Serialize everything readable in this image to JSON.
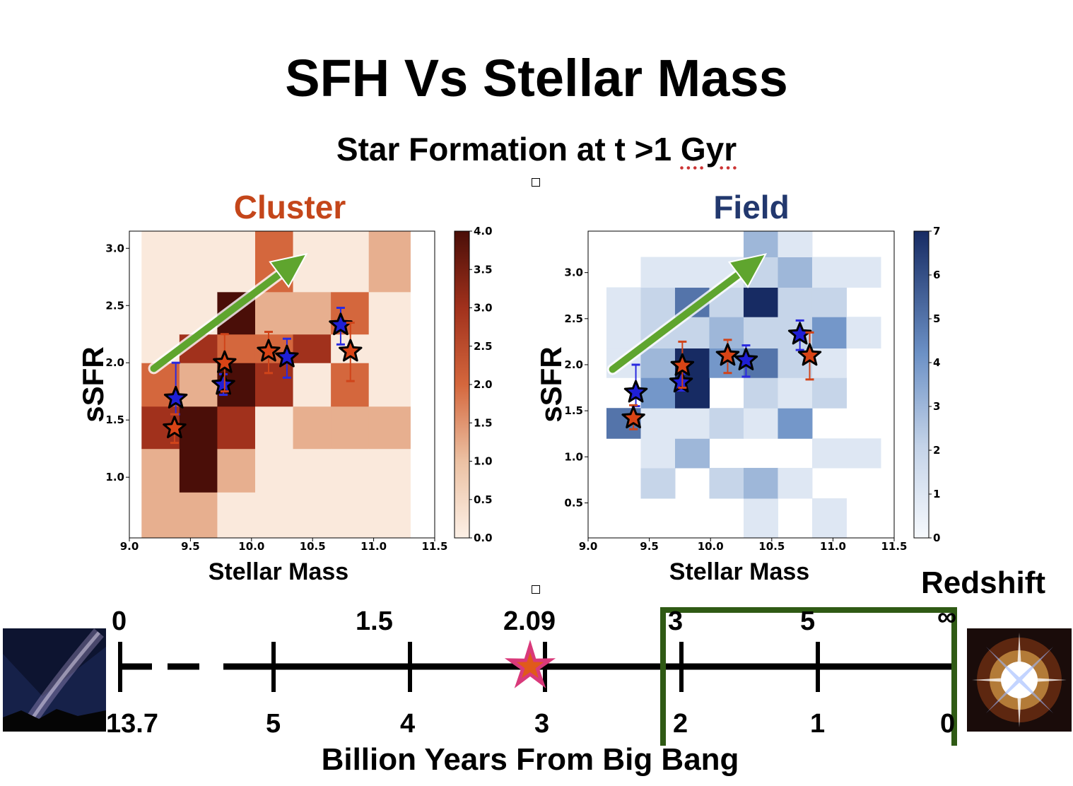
{
  "slide": {
    "title": "SFH Vs Stellar Mass",
    "subtitle_prefix": "Star Formation at t >1 ",
    "subtitle_unit": "Gyr"
  },
  "chart_data": [
    {
      "type": "heatmap",
      "title": "Cluster",
      "xlabel": "Stellar Mass",
      "ylabel": "sSFR",
      "xlim": [
        9.0,
        11.5
      ],
      "ylim": [
        0.47,
        3.15
      ],
      "xticks": [
        "9.0",
        "9.5",
        "10.0",
        "10.5",
        "11.0",
        "11.5"
      ],
      "yticks": [
        "1.0",
        "1.5",
        "2.0",
        "2.5",
        "3.0"
      ],
      "colormap": "Oranges-Reds",
      "colorbar": {
        "min": 0,
        "max": 4,
        "ticks": [
          "0.0",
          "0.5",
          "1.0",
          "1.5",
          "2.0",
          "2.5",
          "3.0",
          "3.5",
          "4.0"
        ]
      },
      "cells": [
        {
          "x0": 9.1,
          "x1": 9.41,
          "y0": 0.47,
          "y1": 0.87,
          "v": 1.2
        },
        {
          "x0": 9.1,
          "x1": 9.41,
          "y0": 0.87,
          "y1": 1.25,
          "v": 1.2
        },
        {
          "x0": 9.1,
          "x1": 9.41,
          "y0": 1.25,
          "y1": 1.62,
          "v": 3.0
        },
        {
          "x0": 9.1,
          "x1": 9.41,
          "y0": 1.62,
          "y1": 2.0,
          "v": 2.0
        },
        {
          "x0": 9.1,
          "x1": 9.41,
          "y0": 2.0,
          "y1": 3.15,
          "v": 0.15
        },
        {
          "x0": 9.41,
          "x1": 9.72,
          "y0": 0.47,
          "y1": 0.87,
          "v": 1.2
        },
        {
          "x0": 9.41,
          "x1": 9.72,
          "y0": 0.87,
          "y1": 1.25,
          "v": 4.0
        },
        {
          "x0": 9.41,
          "x1": 9.72,
          "y0": 1.25,
          "y1": 1.62,
          "v": 4.0
        },
        {
          "x0": 9.41,
          "x1": 9.72,
          "y0": 1.62,
          "y1": 2.0,
          "v": 1.2
        },
        {
          "x0": 9.41,
          "x1": 9.72,
          "y0": 2.0,
          "y1": 2.25,
          "v": 3.0
        },
        {
          "x0": 9.41,
          "x1": 9.72,
          "y0": 2.25,
          "y1": 3.15,
          "v": 0.15
        },
        {
          "x0": 9.72,
          "x1": 10.03,
          "y0": 0.47,
          "y1": 0.87,
          "v": 0.15
        },
        {
          "x0": 9.72,
          "x1": 10.03,
          "y0": 0.87,
          "y1": 1.25,
          "v": 1.2
        },
        {
          "x0": 9.72,
          "x1": 10.03,
          "y0": 1.25,
          "y1": 1.62,
          "v": 3.0
        },
        {
          "x0": 9.72,
          "x1": 10.03,
          "y0": 1.62,
          "y1": 2.0,
          "v": 4.0
        },
        {
          "x0": 9.72,
          "x1": 10.03,
          "y0": 2.0,
          "y1": 2.25,
          "v": 2.0
        },
        {
          "x0": 9.72,
          "x1": 10.03,
          "y0": 2.25,
          "y1": 2.62,
          "v": 4.0
        },
        {
          "x0": 9.72,
          "x1": 10.03,
          "y0": 2.62,
          "y1": 3.15,
          "v": 0.15
        },
        {
          "x0": 10.03,
          "x1": 10.34,
          "y0": 0.47,
          "y1": 1.62,
          "v": 0.15
        },
        {
          "x0": 10.03,
          "x1": 10.34,
          "y0": 1.62,
          "y1": 2.0,
          "v": 3.0
        },
        {
          "x0": 10.03,
          "x1": 10.34,
          "y0": 2.0,
          "y1": 2.25,
          "v": 2.0
        },
        {
          "x0": 10.03,
          "x1": 10.34,
          "y0": 2.25,
          "y1": 2.62,
          "v": 1.2
        },
        {
          "x0": 10.03,
          "x1": 10.34,
          "y0": 2.62,
          "y1": 3.15,
          "v": 2.0
        },
        {
          "x0": 10.34,
          "x1": 10.65,
          "y0": 0.47,
          "y1": 1.25,
          "v": 0.15
        },
        {
          "x0": 10.34,
          "x1": 10.65,
          "y0": 1.25,
          "y1": 1.62,
          "v": 1.2
        },
        {
          "x0": 10.34,
          "x1": 10.65,
          "y0": 1.62,
          "y1": 2.0,
          "v": 0.15
        },
        {
          "x0": 10.34,
          "x1": 10.65,
          "y0": 2.0,
          "y1": 2.25,
          "v": 3.0
        },
        {
          "x0": 10.34,
          "x1": 10.65,
          "y0": 2.25,
          "y1": 2.62,
          "v": 1.2
        },
        {
          "x0": 10.34,
          "x1": 10.65,
          "y0": 2.62,
          "y1": 3.15,
          "v": 0.15
        },
        {
          "x0": 10.65,
          "x1": 10.96,
          "y0": 0.47,
          "y1": 1.25,
          "v": 0.15
        },
        {
          "x0": 10.65,
          "x1": 10.96,
          "y0": 1.25,
          "y1": 1.62,
          "v": 1.2
        },
        {
          "x0": 10.65,
          "x1": 10.96,
          "y0": 1.62,
          "y1": 2.0,
          "v": 2.0
        },
        {
          "x0": 10.65,
          "x1": 10.96,
          "y0": 2.0,
          "y1": 2.25,
          "v": 0.15
        },
        {
          "x0": 10.65,
          "x1": 10.96,
          "y0": 2.25,
          "y1": 2.62,
          "v": 2.0
        },
        {
          "x0": 10.65,
          "x1": 10.96,
          "y0": 2.62,
          "y1": 3.15,
          "v": 0.15
        },
        {
          "x0": 10.96,
          "x1": 11.3,
          "y0": 0.47,
          "y1": 1.25,
          "v": 0.15
        },
        {
          "x0": 10.96,
          "x1": 11.3,
          "y0": 1.25,
          "y1": 1.62,
          "v": 1.2
        },
        {
          "x0": 10.96,
          "x1": 11.3,
          "y0": 1.62,
          "y1": 2.62,
          "v": 0.15
        },
        {
          "x0": 10.96,
          "x1": 11.3,
          "y0": 2.62,
          "y1": 3.15,
          "v": 1.2
        }
      ],
      "arrow": {
        "from": [
          9.2,
          1.95
        ],
        "to": [
          10.45,
          2.95
        ],
        "color": "#5fa52e"
      },
      "points": [
        {
          "x": 9.38,
          "y": 1.69,
          "ylo": 1.55,
          "yhi": 2.0,
          "color": "#1f1fd6",
          "err": "#2a2adf"
        },
        {
          "x": 9.37,
          "y": 1.43,
          "ylo": 1.3,
          "yhi": 1.55,
          "color": "#d94416",
          "err": "#d0441a"
        },
        {
          "x": 9.77,
          "y": 1.81,
          "ylo": 1.72,
          "yhi": 1.9,
          "color": "#1f1fd6",
          "err": "#2a2adf"
        },
        {
          "x": 9.78,
          "y": 2.0,
          "ylo": 1.75,
          "yhi": 2.25,
          "color": "#d94416",
          "err": "#d0441a"
        },
        {
          "x": 10.14,
          "y": 2.1,
          "ylo": 1.91,
          "yhi": 2.27,
          "color": "#d94416",
          "err": "#d0441a"
        },
        {
          "x": 10.29,
          "y": 2.05,
          "ylo": 1.87,
          "yhi": 2.21,
          "color": "#1f1fd6",
          "err": "#2a2adf"
        },
        {
          "x": 10.73,
          "y": 2.33,
          "ylo": 2.16,
          "yhi": 2.48,
          "color": "#1f1fd6",
          "err": "#2a2adf"
        },
        {
          "x": 10.81,
          "y": 2.1,
          "ylo": 1.84,
          "yhi": 2.35,
          "color": "#d94416",
          "err": "#d0441a"
        }
      ]
    },
    {
      "type": "heatmap",
      "title": "Field",
      "xlabel": "Stellar Mass",
      "ylabel": "sSFR",
      "xlim": [
        9.0,
        11.5
      ],
      "ylim": [
        0.12,
        3.45
      ],
      "xticks": [
        "9.0",
        "9.5",
        "10.0",
        "10.5",
        "11.0",
        "11.5"
      ],
      "yticks": [
        "0.5",
        "1.0",
        "1.5",
        "2.0",
        "2.5",
        "3.0"
      ],
      "colormap": "Blues",
      "colorbar": {
        "min": 0,
        "max": 7,
        "ticks": [
          "0",
          "1",
          "2",
          "3",
          "4",
          "5",
          "6",
          "7"
        ]
      },
      "cells": [
        {
          "x0": 9.15,
          "x1": 9.43,
          "y0": 1.2,
          "y1": 1.53,
          "v": 5
        },
        {
          "x0": 9.15,
          "x1": 9.43,
          "y0": 1.86,
          "y1": 2.18,
          "v": 1
        },
        {
          "x0": 9.15,
          "x1": 9.43,
          "y0": 2.18,
          "y1": 2.52,
          "v": 1
        },
        {
          "x0": 9.15,
          "x1": 9.43,
          "y0": 2.52,
          "y1": 2.84,
          "v": 1
        },
        {
          "x0": 9.43,
          "x1": 9.71,
          "y0": 0.55,
          "y1": 0.88,
          "v": 2
        },
        {
          "x0": 9.43,
          "x1": 9.71,
          "y0": 0.88,
          "y1": 1.2,
          "v": 1
        },
        {
          "x0": 9.43,
          "x1": 9.71,
          "y0": 1.2,
          "y1": 1.53,
          "v": 1
        },
        {
          "x0": 9.43,
          "x1": 9.71,
          "y0": 1.53,
          "y1": 1.86,
          "v": 4
        },
        {
          "x0": 9.43,
          "x1": 9.71,
          "y0": 1.86,
          "y1": 2.18,
          "v": 3
        },
        {
          "x0": 9.43,
          "x1": 9.71,
          "y0": 2.18,
          "y1": 2.52,
          "v": 2
        },
        {
          "x0": 9.43,
          "x1": 9.71,
          "y0": 2.52,
          "y1": 2.84,
          "v": 2
        },
        {
          "x0": 9.43,
          "x1": 9.71,
          "y0": 2.84,
          "y1": 3.17,
          "v": 1
        },
        {
          "x0": 9.71,
          "x1": 9.99,
          "y0": 0.88,
          "y1": 1.2,
          "v": 3
        },
        {
          "x0": 9.71,
          "x1": 9.99,
          "y0": 1.2,
          "y1": 1.53,
          "v": 1
        },
        {
          "x0": 9.71,
          "x1": 9.99,
          "y0": 1.53,
          "y1": 2.18,
          "v": 7
        },
        {
          "x0": 9.71,
          "x1": 9.99,
          "y0": 2.18,
          "y1": 2.52,
          "v": 2
        },
        {
          "x0": 9.71,
          "x1": 9.99,
          "y0": 2.52,
          "y1": 2.84,
          "v": 5
        },
        {
          "x0": 9.71,
          "x1": 9.99,
          "y0": 2.84,
          "y1": 3.17,
          "v": 1
        },
        {
          "x0": 9.99,
          "x1": 10.27,
          "y0": 0.55,
          "y1": 0.88,
          "v": 2
        },
        {
          "x0": 9.99,
          "x1": 10.27,
          "y0": 1.2,
          "y1": 1.53,
          "v": 2
        },
        {
          "x0": 9.99,
          "x1": 10.27,
          "y0": 1.86,
          "y1": 2.18,
          "v": 4
        },
        {
          "x0": 9.99,
          "x1": 10.27,
          "y0": 2.18,
          "y1": 2.52,
          "v": 3
        },
        {
          "x0": 9.99,
          "x1": 10.27,
          "y0": 2.52,
          "y1": 2.84,
          "v": 2
        },
        {
          "x0": 9.99,
          "x1": 10.27,
          "y0": 2.84,
          "y1": 3.17,
          "v": 1
        },
        {
          "x0": 10.27,
          "x1": 10.55,
          "y0": 0.12,
          "y1": 0.55,
          "v": 1
        },
        {
          "x0": 10.27,
          "x1": 10.55,
          "y0": 0.55,
          "y1": 0.88,
          "v": 3
        },
        {
          "x0": 10.27,
          "x1": 10.55,
          "y0": 1.2,
          "y1": 1.53,
          "v": 1
        },
        {
          "x0": 10.27,
          "x1": 10.55,
          "y0": 1.53,
          "y1": 1.86,
          "v": 2
        },
        {
          "x0": 10.27,
          "x1": 10.55,
          "y0": 1.86,
          "y1": 2.18,
          "v": 5
        },
        {
          "x0": 10.27,
          "x1": 10.55,
          "y0": 2.18,
          "y1": 2.52,
          "v": 2
        },
        {
          "x0": 10.27,
          "x1": 10.55,
          "y0": 2.52,
          "y1": 2.84,
          "v": 7
        },
        {
          "x0": 10.27,
          "x1": 10.55,
          "y0": 2.84,
          "y1": 3.17,
          "v": 2
        },
        {
          "x0": 10.27,
          "x1": 10.55,
          "y0": 3.17,
          "y1": 3.45,
          "v": 3
        },
        {
          "x0": 10.55,
          "x1": 10.83,
          "y0": 0.55,
          "y1": 0.88,
          "v": 1
        },
        {
          "x0": 10.55,
          "x1": 10.83,
          "y0": 1.2,
          "y1": 1.53,
          "v": 4
        },
        {
          "x0": 10.55,
          "x1": 10.83,
          "y0": 1.53,
          "y1": 1.86,
          "v": 1
        },
        {
          "x0": 10.55,
          "x1": 10.83,
          "y0": 1.86,
          "y1": 2.18,
          "v": 2
        },
        {
          "x0": 10.55,
          "x1": 10.83,
          "y0": 2.18,
          "y1": 2.52,
          "v": 2
        },
        {
          "x0": 10.55,
          "x1": 10.83,
          "y0": 2.52,
          "y1": 2.84,
          "v": 2
        },
        {
          "x0": 10.55,
          "x1": 10.83,
          "y0": 2.84,
          "y1": 3.17,
          "v": 3
        },
        {
          "x0": 10.55,
          "x1": 10.83,
          "y0": 3.17,
          "y1": 3.45,
          "v": 1
        },
        {
          "x0": 10.83,
          "x1": 11.11,
          "y0": 0.12,
          "y1": 0.55,
          "v": 1
        },
        {
          "x0": 10.83,
          "x1": 11.11,
          "y0": 0.88,
          "y1": 1.2,
          "v": 1
        },
        {
          "x0": 10.83,
          "x1": 11.11,
          "y0": 1.53,
          "y1": 1.86,
          "v": 2
        },
        {
          "x0": 10.83,
          "x1": 11.11,
          "y0": 1.86,
          "y1": 2.18,
          "v": 1
        },
        {
          "x0": 10.83,
          "x1": 11.11,
          "y0": 2.18,
          "y1": 2.52,
          "v": 4
        },
        {
          "x0": 10.83,
          "x1": 11.11,
          "y0": 2.52,
          "y1": 2.84,
          "v": 2
        },
        {
          "x0": 10.83,
          "x1": 11.11,
          "y0": 2.84,
          "y1": 3.17,
          "v": 1
        },
        {
          "x0": 11.11,
          "x1": 11.39,
          "y0": 0.88,
          "y1": 1.2,
          "v": 1
        },
        {
          "x0": 11.11,
          "x1": 11.39,
          "y0": 2.18,
          "y1": 2.52,
          "v": 1
        },
        {
          "x0": 11.11,
          "x1": 11.39,
          "y0": 2.84,
          "y1": 3.17,
          "v": 1
        }
      ],
      "arrow": {
        "from": [
          9.2,
          1.95
        ],
        "to": [
          10.45,
          3.2
        ],
        "color": "#5fa52e"
      },
      "points": [
        {
          "x": 9.39,
          "y": 1.7,
          "ylo": 1.55,
          "yhi": 2.0,
          "color": "#1f1fd6",
          "err": "#2a2adf"
        },
        {
          "x": 9.37,
          "y": 1.42,
          "ylo": 1.3,
          "yhi": 1.56,
          "color": "#d94416",
          "err": "#d0441a"
        },
        {
          "x": 9.76,
          "y": 1.81,
          "ylo": 1.72,
          "yhi": 1.9,
          "color": "#1f1fd6",
          "err": "#2a2adf"
        },
        {
          "x": 9.77,
          "y": 1.99,
          "ylo": 1.75,
          "yhi": 2.25,
          "color": "#d94416",
          "err": "#d0441a"
        },
        {
          "x": 10.14,
          "y": 2.1,
          "ylo": 1.91,
          "yhi": 2.27,
          "color": "#d94416",
          "err": "#d0441a"
        },
        {
          "x": 10.29,
          "y": 2.05,
          "ylo": 1.87,
          "yhi": 2.21,
          "color": "#1f1fd6",
          "err": "#2a2adf"
        },
        {
          "x": 10.73,
          "y": 2.33,
          "ylo": 2.16,
          "yhi": 2.48,
          "color": "#1f1fd6",
          "err": "#2a2adf"
        },
        {
          "x": 10.81,
          "y": 2.1,
          "ylo": 1.84,
          "yhi": 2.35,
          "color": "#d94416",
          "err": "#d0441a"
        }
      ]
    }
  ],
  "timeline": {
    "redshift_label": "Redshift",
    "caption": "Billion Years From Big Bang",
    "redshift_ticks": [
      "0",
      "1.5",
      "2.09",
      "3",
      "5",
      "∞"
    ],
    "time_ticks": [
      "13.7",
      "5",
      "4",
      "3",
      "2",
      "1",
      "0"
    ],
    "highlight_box_color": "#2f5a14",
    "star_color": "#d9397a",
    "star_inner_color": "#e05a1a"
  }
}
